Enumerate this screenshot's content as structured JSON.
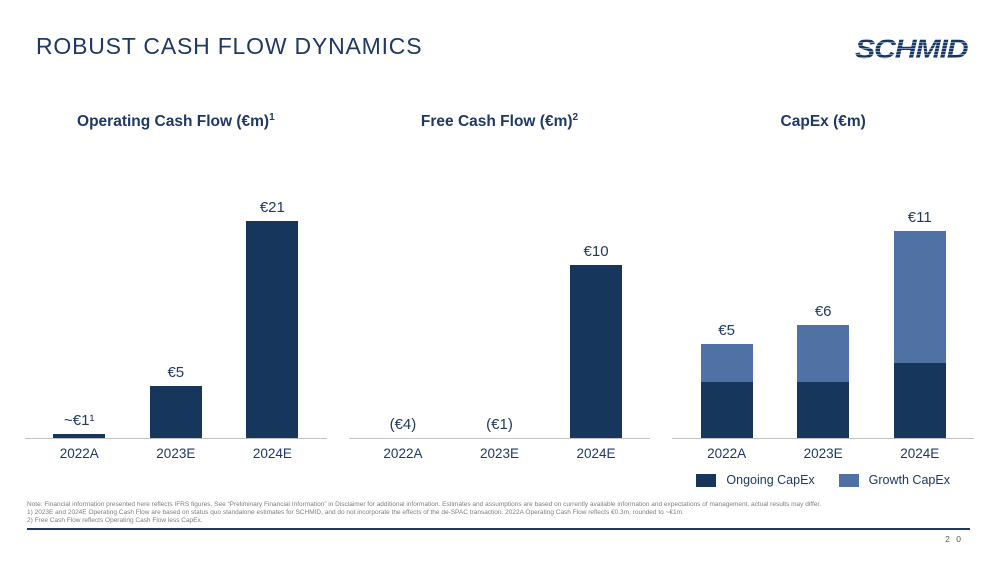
{
  "slide": {
    "title": "ROBUST CASH FLOW DYNAMICS",
    "logo_text": "SCHMID",
    "page_number": "2 0"
  },
  "colors": {
    "bar_navy": "#16365C",
    "bar_light_blue": "#4F71A4",
    "heading_navy": "#1F3864",
    "axis_gray": "#C3C3C3",
    "footnote_gray": "#7F7F7F"
  },
  "chart_data": [
    {
      "type": "bar",
      "title": "Operating Cash Flow (€m)",
      "title_superscript": "1",
      "categories": [
        "2022A",
        "2023E",
        "2024E"
      ],
      "values": [
        0.3,
        5,
        21
      ],
      "labels": [
        "~€1¹",
        "€5",
        "€21"
      ],
      "ylim": [
        0,
        21
      ],
      "grid": false,
      "bar_color": "#16365C"
    },
    {
      "type": "bar",
      "title": "Free Cash Flow (€m)",
      "title_superscript": "2",
      "categories": [
        "2022A",
        "2023E",
        "2024E"
      ],
      "values": [
        -4,
        -1,
        10
      ],
      "labels": [
        "(€4)",
        "(€1)",
        "€10"
      ],
      "ylim": [
        0,
        10
      ],
      "grid": false,
      "bar_color": "#16365C",
      "note": "negative values shown as labels only, no bars drawn"
    },
    {
      "type": "bar",
      "stacked": true,
      "title": "CapEx (€m)",
      "title_superscript": "",
      "categories": [
        "2022A",
        "2023E",
        "2024E"
      ],
      "series": [
        {
          "name": "Ongoing CapEx",
          "values": [
            3,
            3,
            4
          ],
          "color": "#16365C"
        },
        {
          "name": "Growth CapEx",
          "values": [
            2,
            3,
            7
          ],
          "color": "#4F71A4"
        }
      ],
      "totals": [
        5,
        6,
        11
      ],
      "labels": [
        "€5",
        "€6",
        "€11"
      ],
      "ylim": [
        0,
        11
      ],
      "grid": false,
      "legend_position": "bottom"
    }
  ],
  "footnotes": {
    "note": "Note: Financial information presented here reflects IFRS figures. See “Preliminary Financial Information” in Disclaimer for additional information. Estimates and assumptions are based on currently available information and expectations of management, actual results may differ.",
    "fn1": "1) 2023E and 2024E Operating Cash Flow are based on status quo standalone estimates for SCHMID, and do not incorporate the effects of the de-SPAC transaction. 2022A Operating Cash Flow reflects €0.3m, rounded to ~€1m.",
    "fn2": "2) Free Cash Flow reflects Operating Cash Flow less CapEx."
  }
}
